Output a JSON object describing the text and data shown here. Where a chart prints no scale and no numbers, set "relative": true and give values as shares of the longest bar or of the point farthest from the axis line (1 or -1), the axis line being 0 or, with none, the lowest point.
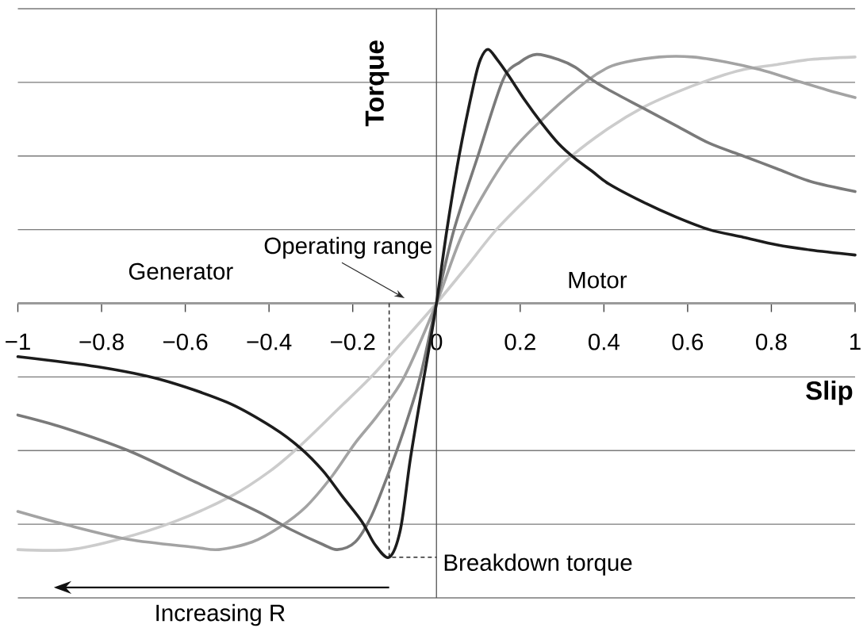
{
  "chart_data": {
    "type": "line",
    "xlabel": "Slip",
    "ylabel": "Torque",
    "relative": true,
    "tick_labels": "x",
    "grid": "y",
    "xlim": [
      -1,
      1
    ],
    "xticks": [
      {
        "value": -1,
        "label": "−1"
      },
      {
        "value": -0.8,
        "label": "−0.8"
      },
      {
        "value": -0.6,
        "label": "−0.6"
      },
      {
        "value": -0.4,
        "label": "−0.4"
      },
      {
        "value": -0.2,
        "label": "−0.2"
      },
      0,
      0.2,
      0.4,
      0.6,
      0.8,
      1
    ],
    "ref_lines": [
      {
        "axis": "x",
        "value": 0,
        "color": "#555555"
      }
    ],
    "annotations": [
      "Generator",
      "Motor",
      "Operating range",
      {
        "text": "Breakdown torque",
        "x": -0.113,
        "y": -1
      },
      "Increasing R"
    ],
    "series": [
      {
        "color": "#1c1c1c",
        "x": [
          -1,
          -0.81,
          -0.66,
          -0.5,
          -0.39,
          -0.325,
          -0.271,
          -0.225,
          -0.178,
          -0.147,
          -0.113,
          -0.086,
          -0.063,
          -0.039,
          -0.016,
          0,
          0.025,
          0.054,
          0.09,
          0.105,
          0.123,
          0.145,
          0.171,
          0.211,
          0.251,
          0.291,
          0.331,
          0.372,
          0.412,
          0.492,
          0.572,
          0.652,
          0.733,
          0.813,
          0.893,
          1
        ],
        "values": [
          -0.21,
          -0.25,
          -0.3,
          -0.39,
          -0.49,
          -0.57,
          -0.66,
          -0.76,
          -0.86,
          -0.95,
          -1,
          -0.89,
          -0.62,
          -0.38,
          -0.16,
          0,
          0.29,
          0.58,
          0.87,
          0.96,
          1,
          0.96,
          0.9,
          0.8,
          0.71,
          0.63,
          0.57,
          0.52,
          0.47,
          0.4,
          0.34,
          0.29,
          0.26,
          0.23,
          0.21,
          0.19
        ]
      },
      {
        "color": "#7a7a7a",
        "x": [
          -1,
          -0.89,
          -0.736,
          -0.581,
          -0.427,
          -0.349,
          -0.271,
          -0.237,
          -0.194,
          -0.156,
          -0.117,
          -0.078,
          -0.039,
          0,
          0.042,
          0.099,
          0.159,
          0.2,
          0.239,
          0.291,
          0.331,
          0.372,
          0.412,
          0.492,
          0.572,
          0.652,
          0.733,
          0.813,
          0.893,
          1
        ],
        "values": [
          -0.44,
          -0.49,
          -0.58,
          -0.7,
          -0.82,
          -0.89,
          -0.95,
          -0.97,
          -0.94,
          -0.84,
          -0.68,
          -0.5,
          -0.29,
          0,
          0.29,
          0.58,
          0.88,
          0.95,
          0.98,
          0.96,
          0.93,
          0.88,
          0.84,
          0.77,
          0.7,
          0.63,
          0.58,
          0.53,
          0.48,
          0.44
        ]
      },
      {
        "color": "#a3a3a3",
        "x": [
          -1,
          -0.89,
          -0.736,
          -0.581,
          -0.52,
          -0.44,
          -0.373,
          -0.311,
          -0.249,
          -0.194,
          -0.14,
          -0.077,
          0,
          0.067,
          0.171,
          0.27,
          0.363,
          0.412,
          0.452,
          0.532,
          0.612,
          0.692,
          0.773,
          0.853,
          0.933,
          1
        ],
        "values": [
          -0.82,
          -0.87,
          -0.93,
          -0.96,
          -0.97,
          -0.94,
          -0.88,
          -0.8,
          -0.68,
          -0.55,
          -0.44,
          -0.29,
          0,
          0.29,
          0.58,
          0.75,
          0.88,
          0.93,
          0.95,
          0.97,
          0.97,
          0.95,
          0.92,
          0.88,
          0.84,
          0.81
        ]
      },
      {
        "color": "#cccccc",
        "x": [
          -1,
          -0.874,
          -0.76,
          -0.626,
          -0.491,
          -0.397,
          -0.325,
          -0.237,
          -0.156,
          -0.08,
          0,
          0.07,
          0.143,
          0.233,
          0.323,
          0.412,
          0.492,
          0.572,
          0.652,
          0.733,
          0.813,
          0.893,
          1
        ],
        "values": [
          -0.97,
          -0.97,
          -0.93,
          -0.86,
          -0.76,
          -0.66,
          -0.56,
          -0.42,
          -0.29,
          -0.15,
          0,
          0.14,
          0.29,
          0.44,
          0.58,
          0.69,
          0.77,
          0.83,
          0.88,
          0.92,
          0.94,
          0.96,
          0.97
        ]
      },
      {
        "color": "#2a2a2a",
        "line_style": "dashed",
        "x": [
          -0.113,
          -0.113,
          0
        ],
        "values": [
          0,
          -1,
          -1
        ]
      }
    ]
  }
}
